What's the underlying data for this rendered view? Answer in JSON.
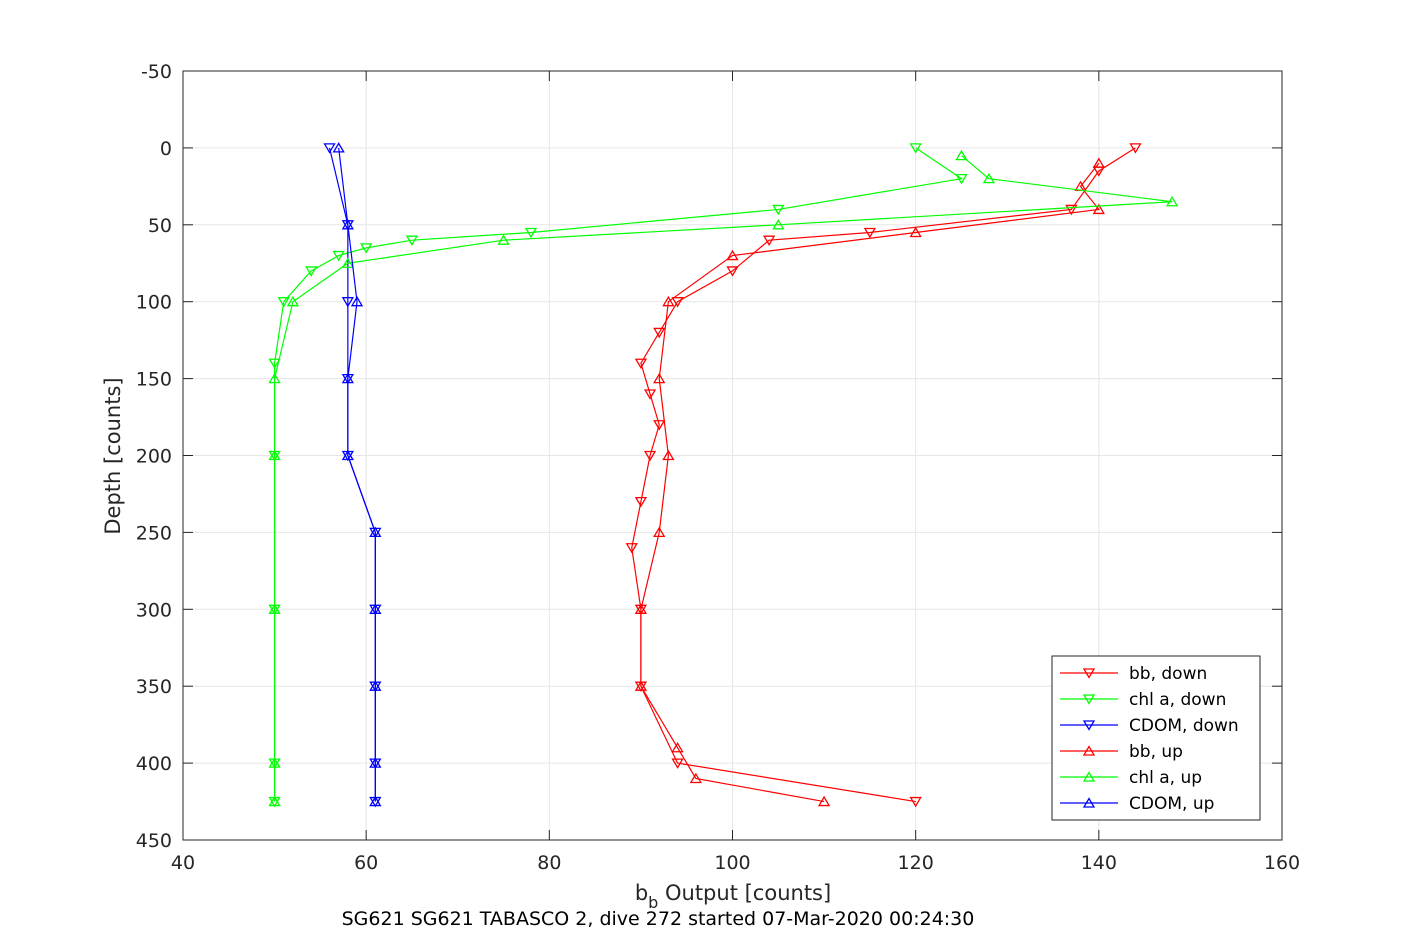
{
  "chart_data": {
    "type": "scatter",
    "caption": "SG621 SG621 TABASCO 2, dive 272 started 07-Mar-2020 00:24:30",
    "xlabel_main": "b",
    "xlabel_sub": "b",
    "xlabel_rest": " Output [counts]",
    "ylabel": "Depth [counts]",
    "xlim": [
      40,
      160
    ],
    "ylim": [
      -50,
      450
    ],
    "y_reversed": true,
    "grid": true,
    "legend_position": "bottom-right",
    "xticks": [
      "40",
      "60",
      "80",
      "100",
      "120",
      "140",
      "160"
    ],
    "yticks": [
      "-50",
      "0",
      "50",
      "100",
      "150",
      "200",
      "250",
      "300",
      "350",
      "400",
      "450"
    ],
    "series": [
      {
        "name": "bb, down",
        "color": "#ff0000",
        "marker": "down",
        "depth": [
          0,
          15,
          40,
          55,
          60,
          80,
          100,
          120,
          140,
          160,
          180,
          200,
          230,
          260,
          300,
          350,
          400,
          425
        ],
        "value": [
          144,
          140,
          137,
          115,
          104,
          100,
          94,
          92,
          90,
          91,
          92,
          91,
          90,
          89,
          90,
          90,
          94,
          120
        ]
      },
      {
        "name": "chl a, down",
        "color": "#00ff00",
        "marker": "down",
        "depth": [
          0,
          20,
          40,
          55,
          60,
          65,
          70,
          80,
          100,
          140,
          200,
          300,
          400,
          425
        ],
        "value": [
          120,
          125,
          105,
          78,
          65,
          60,
          57,
          54,
          51,
          50,
          50,
          50,
          50,
          50
        ]
      },
      {
        "name": "CDOM, down",
        "color": "#0000ff",
        "marker": "down",
        "depth": [
          0,
          50,
          100,
          150,
          200,
          250,
          300,
          350,
          400,
          425
        ],
        "value": [
          56,
          58,
          58,
          58,
          58,
          61,
          61,
          61,
          61,
          61
        ]
      },
      {
        "name": "bb, up",
        "color": "#ff0000",
        "marker": "up",
        "depth": [
          10,
          25,
          40,
          55,
          70,
          100,
          150,
          200,
          250,
          300,
          350,
          390,
          410,
          425
        ],
        "value": [
          140,
          138,
          140,
          120,
          100,
          93,
          92,
          93,
          92,
          90,
          90,
          94,
          96,
          110
        ]
      },
      {
        "name": "chl a, up",
        "color": "#00ff00",
        "marker": "up",
        "depth": [
          5,
          20,
          35,
          50,
          60,
          75,
          100,
          150,
          200,
          300,
          400,
          425
        ],
        "value": [
          125,
          128,
          148,
          105,
          75,
          58,
          52,
          50,
          50,
          50,
          50,
          50
        ]
      },
      {
        "name": "CDOM, up",
        "color": "#0000ff",
        "marker": "up",
        "depth": [
          0,
          50,
          100,
          150,
          200,
          250,
          300,
          350,
          400,
          425
        ],
        "value": [
          57,
          58,
          59,
          58,
          58,
          61,
          61,
          61,
          61,
          61
        ]
      }
    ]
  }
}
